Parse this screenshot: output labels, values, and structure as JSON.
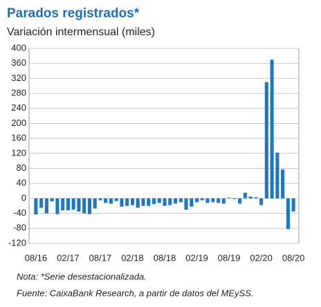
{
  "chart_data": {
    "type": "bar",
    "title": "Parados registrados*",
    "subtitle": "Variación intermensual (miles)",
    "categories": [
      "08/16",
      null,
      null,
      null,
      null,
      null,
      "02/17",
      null,
      null,
      null,
      null,
      null,
      "08/17",
      null,
      null,
      null,
      null,
      null,
      "02/18",
      null,
      null,
      null,
      null,
      null,
      "08/18",
      null,
      null,
      null,
      null,
      null,
      "02/19",
      null,
      null,
      null,
      null,
      null,
      "08/19",
      null,
      null,
      null,
      null,
      null,
      "02/20",
      null,
      null,
      null,
      null,
      null,
      "08/20"
    ],
    "values": [
      -43,
      -25,
      -40,
      -8,
      -42,
      -32,
      -32,
      -30,
      -35,
      -40,
      -42,
      -27,
      -5,
      -12,
      -14,
      -7,
      -22,
      -20,
      -18,
      -25,
      -20,
      -20,
      -15,
      -12,
      -20,
      -18,
      -14,
      -10,
      -30,
      -22,
      -10,
      -5,
      -12,
      -10,
      -12,
      -14,
      2,
      -2,
      -14,
      15,
      5,
      3,
      -18,
      310,
      370,
      122,
      77,
      -82,
      -35
    ],
    "color": "#1f78c1",
    "ylim": [
      -120,
      400
    ],
    "yticks": [
      -120,
      -80,
      -40,
      0,
      40,
      80,
      120,
      160,
      200,
      240,
      280,
      320,
      360,
      400
    ],
    "grid": true,
    "notes": [
      "Nota: *Serie desestacionalizada.",
      "Fuente: CaixaBank Research, a partir de datos del MEySS."
    ]
  }
}
